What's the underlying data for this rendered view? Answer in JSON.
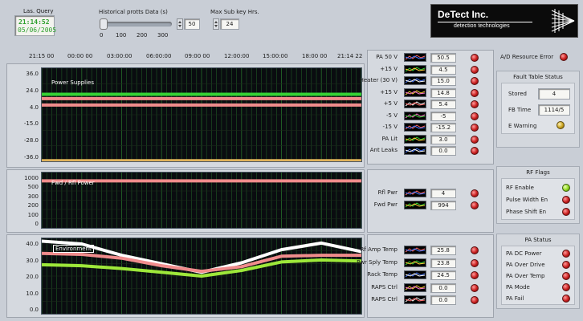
{
  "header": {
    "last_query_label": "Las. Query",
    "last_query_time": "21:14:52",
    "last_query_date": "05/06/2005",
    "history_label": "Historical protts Data (s)",
    "history_value": "50",
    "history_ticks": [
      "0",
      "100",
      "200",
      "300"
    ],
    "max_label": "Max Sub key Hrs.",
    "max_value": "24"
  },
  "logo": {
    "name": "DeTect Inc.",
    "subtitle": "detection technologies"
  },
  "time_axis": [
    "21:15 00",
    "00:00 00",
    "03:00:00",
    "06:00:00",
    "09:00 00",
    "12:00:00",
    "15:00:00",
    "18:00 00",
    "21:14 22"
  ],
  "plots": [
    {
      "title": "Power Supplies",
      "y_ticks": [
        "36.0",
        "24.0",
        "4.0",
        "-15.0",
        "-28.0",
        "-36.0"
      ]
    },
    {
      "title": "Fwd / Rfl Power",
      "y_ticks": [
        "1000",
        "500",
        "300",
        "200",
        "100",
        "0"
      ]
    },
    {
      "title": "Environment",
      "y_ticks": [
        "40.0",
        "30.0",
        "20.0",
        "10.0",
        "0.0"
      ]
    }
  ],
  "chart_data": [
    {
      "type": "line",
      "title": "Power Supplies",
      "x": [
        "21:15 00",
        "00:00 00",
        "03:00:00",
        "06:00:00",
        "09:00 00",
        "12:00:00",
        "15:00:00",
        "18:00 00",
        "21:14 22"
      ],
      "ylim": [
        -36,
        36
      ],
      "series": [
        {
          "values": [
            15.8,
            15.8,
            15.8,
            15.8,
            15.8,
            15.8,
            15.8,
            15.8,
            15.8
          ],
          "color": "#35d235"
        },
        {
          "values": [
            12.5,
            12.5,
            12.5,
            12.5,
            12.5,
            12.5,
            12.5,
            12.5,
            12.5
          ],
          "color": "#f08c8c"
        },
        {
          "values": [
            7.5,
            7.5,
            7.5,
            7.5,
            7.5,
            7.5,
            7.5,
            7.5,
            7.5
          ],
          "color": "#f08c8c"
        },
        {
          "values": [
            -35.5,
            -35.5,
            -35.5,
            -35.5,
            -35.5,
            -35.5,
            -35.5,
            -35.5,
            -35.5
          ],
          "color": "#e0b35a"
        }
      ]
    },
    {
      "type": "line",
      "title": "Fwd / Rfl Power",
      "x": [
        "21:15 00",
        "00:00 00",
        "03:00:00",
        "06:00:00",
        "09:00 00",
        "12:00:00",
        "15:00:00",
        "18:00 00",
        "21:14 22"
      ],
      "ylim": [
        0,
        1000
      ],
      "series": [
        {
          "values": [
            850,
            850,
            850,
            850,
            850,
            850,
            850,
            850,
            850
          ],
          "color": "#f08c8c"
        }
      ]
    },
    {
      "type": "line",
      "title": "Environment",
      "x": [
        "21:15 00",
        "00:00 00",
        "03:00:00",
        "06:00:00",
        "09:00 00",
        "12:00:00",
        "15:00:00",
        "18:00 00",
        "21:14 22"
      ],
      "ylim": [
        0,
        40
      ],
      "series": [
        {
          "values": [
            38.5,
            37.0,
            31.0,
            26.5,
            22.0,
            27.0,
            34.0,
            37.5,
            33.0
          ],
          "color": "#ffffff"
        },
        {
          "values": [
            32.0,
            31.5,
            29.5,
            25.5,
            22.5,
            25.0,
            30.5,
            31.0,
            31.0
          ],
          "color": "#f08c8c"
        },
        {
          "values": [
            26.0,
            25.5,
            24.0,
            22.0,
            20.0,
            23.0,
            27.5,
            28.5,
            28.0
          ],
          "color": "#9ee83a"
        }
      ]
    }
  ],
  "channels_power": [
    {
      "name": "PA 50 V",
      "value": "50.5"
    },
    {
      "name": "+15 V",
      "value": "4.5"
    },
    {
      "name": "Heater (30 V)",
      "value": "15.0"
    },
    {
      "name": "+15 V",
      "value": "14.8"
    },
    {
      "name": "+5 V",
      "value": "5.4"
    },
    {
      "name": "-5 V",
      "value": "-5"
    },
    {
      "name": "-15 V",
      "value": "-15.2"
    },
    {
      "name": "PA Lit",
      "value": "3.0"
    },
    {
      "name": "Ant Leaks",
      "value": "0.0"
    }
  ],
  "channels_rf": [
    {
      "name": "Rfl Pwr",
      "value": "4"
    },
    {
      "name": "Fwd Pwr",
      "value": "994"
    }
  ],
  "channels_env": [
    {
      "name": "Rf Amp Temp",
      "value": "25.8"
    },
    {
      "name": "Pwr Sply Temp",
      "value": "23.8"
    },
    {
      "name": "Rack Temp",
      "value": "24.5"
    },
    {
      "name": "RAPS Ctrl",
      "value": "0.0"
    },
    {
      "name": "RAPS Ctrl",
      "value": "0.0"
    }
  ],
  "alarm": {
    "label": "A/D Resource Error"
  },
  "fault_status": {
    "title": "Fault Table Status",
    "stored_label": "Stored",
    "stored_value": "4",
    "fb_label": "FB Time",
    "fb_value": "1114/5",
    "warning_label": "E Warning"
  },
  "rf_flags": {
    "title": "RF Flags",
    "items": [
      "RF Enable",
      "Pulse Width En",
      "Phase Shift En"
    ]
  },
  "pa_status": {
    "title": "PA Status",
    "items": [
      "PA DC Power",
      "PA Over Drive",
      "PA Over Temp",
      "PA Mode",
      "PA Fail"
    ]
  },
  "colors": {
    "led_red": "#c81e1e",
    "led_green": "#8fd81e",
    "led_amber": "#c8a21e",
    "plot_bg": "#0a0c10"
  }
}
